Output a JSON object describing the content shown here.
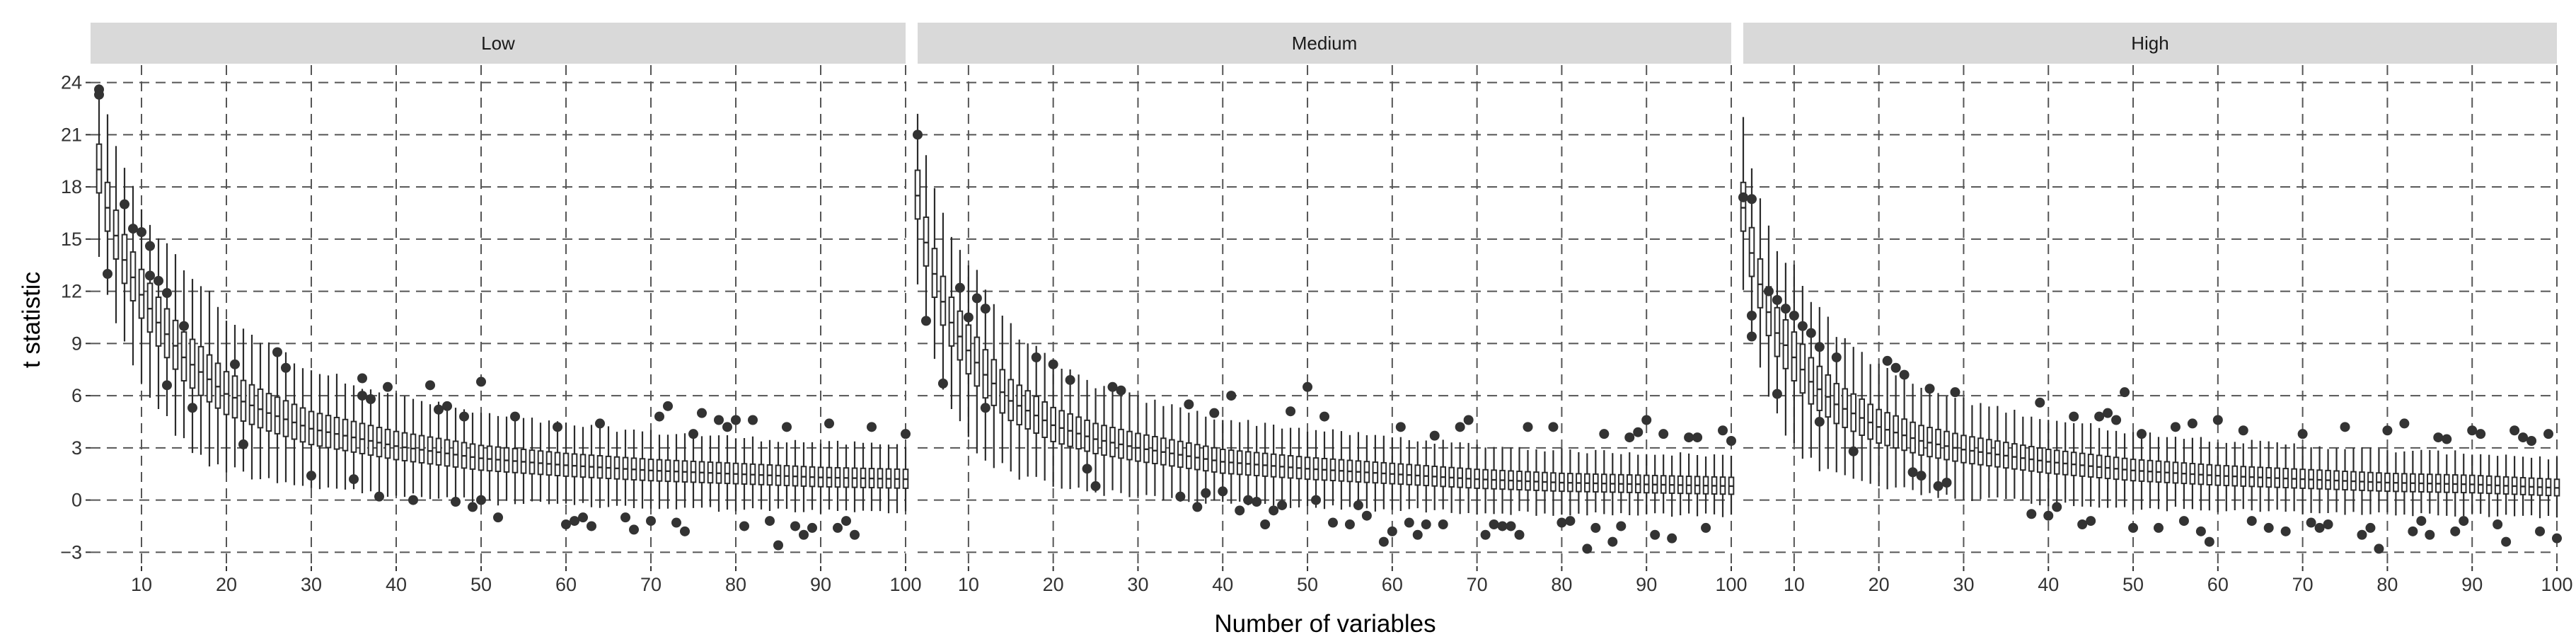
{
  "chart_data": {
    "type": "box",
    "xlabel": "Number of variables",
    "ylabel": "t statistic",
    "xlim": [
      4,
      100
    ],
    "ylim": [
      -3.8,
      25
    ],
    "x_ticks": [
      10,
      20,
      30,
      40,
      50,
      60,
      70,
      80,
      90,
      100
    ],
    "y_ticks": [
      -3,
      0,
      3,
      6,
      9,
      12,
      15,
      18,
      21,
      24
    ],
    "grid": true,
    "grid_style": "dashed",
    "box_color": "#2b2b2b",
    "box_fill": "#ffffff",
    "strip_fill": "#d9d9d9",
    "panels": [
      {
        "name": "Low",
        "median": {
          "x": [
            5,
            6,
            7,
            8,
            10,
            12,
            15,
            20,
            25,
            30,
            40,
            50,
            60,
            70,
            80,
            90,
            100
          ],
          "y": [
            19.0,
            16.8,
            15.2,
            13.8,
            11.8,
            10.2,
            8.2,
            6.1,
            5.0,
            4.1,
            3.1,
            2.4,
            2.0,
            1.7,
            1.5,
            1.3,
            1.2
          ]
        },
        "outliers": [
          {
            "x": 5,
            "y": 23.6
          },
          {
            "x": 5,
            "y": 23.3
          },
          {
            "x": 6,
            "y": 13.0
          },
          {
            "x": 8,
            "y": 17.0
          },
          {
            "x": 9,
            "y": 15.6
          },
          {
            "x": 10,
            "y": 15.4
          },
          {
            "x": 11,
            "y": 14.6
          },
          {
            "x": 11,
            "y": 12.9
          },
          {
            "x": 12,
            "y": 12.6
          },
          {
            "x": 13,
            "y": 11.9
          },
          {
            "x": 13,
            "y": 6.6
          },
          {
            "x": 15,
            "y": 10.0
          },
          {
            "x": 16,
            "y": 5.3
          },
          {
            "x": 21,
            "y": 7.8
          },
          {
            "x": 22,
            "y": 3.2
          },
          {
            "x": 26,
            "y": 8.5
          },
          {
            "x": 27,
            "y": 7.6
          },
          {
            "x": 30,
            "y": 1.4
          },
          {
            "x": 35,
            "y": 1.2
          },
          {
            "x": 36,
            "y": 7.0
          },
          {
            "x": 36,
            "y": 6.0
          },
          {
            "x": 37,
            "y": 5.8
          },
          {
            "x": 38,
            "y": 0.2
          },
          {
            "x": 39,
            "y": 6.5
          },
          {
            "x": 42,
            "y": 0.0
          },
          {
            "x": 44,
            "y": 6.6
          },
          {
            "x": 45,
            "y": 5.2
          },
          {
            "x": 46,
            "y": 5.4
          },
          {
            "x": 47,
            "y": -0.1
          },
          {
            "x": 48,
            "y": 4.8
          },
          {
            "x": 49,
            "y": -0.4
          },
          {
            "x": 50,
            "y": 6.8
          },
          {
            "x": 50,
            "y": 0.0
          },
          {
            "x": 52,
            "y": -1.0
          },
          {
            "x": 54,
            "y": 4.8
          },
          {
            "x": 59,
            "y": 4.2
          },
          {
            "x": 60,
            "y": -1.4
          },
          {
            "x": 61,
            "y": -1.2
          },
          {
            "x": 62,
            "y": -1.0
          },
          {
            "x": 63,
            "y": -1.5
          },
          {
            "x": 64,
            "y": 4.4
          },
          {
            "x": 67,
            "y": -1.0
          },
          {
            "x": 68,
            "y": -1.7
          },
          {
            "x": 70,
            "y": -1.2
          },
          {
            "x": 71,
            "y": 4.8
          },
          {
            "x": 72,
            "y": 5.4
          },
          {
            "x": 73,
            "y": -1.3
          },
          {
            "x": 74,
            "y": -1.8
          },
          {
            "x": 75,
            "y": 3.8
          },
          {
            "x": 76,
            "y": 5.0
          },
          {
            "x": 78,
            "y": 4.6
          },
          {
            "x": 79,
            "y": 4.2
          },
          {
            "x": 80,
            "y": 4.6
          },
          {
            "x": 81,
            "y": -1.5
          },
          {
            "x": 82,
            "y": 4.6
          },
          {
            "x": 84,
            "y": -1.2
          },
          {
            "x": 85,
            "y": -2.6
          },
          {
            "x": 86,
            "y": 4.2
          },
          {
            "x": 87,
            "y": -1.5
          },
          {
            "x": 88,
            "y": -2.0
          },
          {
            "x": 89,
            "y": -1.6
          },
          {
            "x": 91,
            "y": 4.4
          },
          {
            "x": 92,
            "y": -1.6
          },
          {
            "x": 93,
            "y": -1.2
          },
          {
            "x": 94,
            "y": -2.0
          },
          {
            "x": 96,
            "y": 4.2
          },
          {
            "x": 100,
            "y": 3.8
          }
        ]
      },
      {
        "name": "Medium",
        "median": {
          "x": [
            4,
            5,
            6,
            7,
            8,
            10,
            12,
            15,
            20,
            25,
            30,
            40,
            50,
            60,
            70,
            80,
            90,
            100
          ],
          "y": [
            17.5,
            14.8,
            13.0,
            11.4,
            10.2,
            8.6,
            7.2,
            5.7,
            4.3,
            3.5,
            3.0,
            2.2,
            1.8,
            1.5,
            1.2,
            1.0,
            0.9,
            0.8
          ]
        },
        "outliers": [
          {
            "x": 4,
            "y": 21.0
          },
          {
            "x": 5,
            "y": 10.3
          },
          {
            "x": 7,
            "y": 6.7
          },
          {
            "x": 9,
            "y": 12.2
          },
          {
            "x": 10,
            "y": 10.5
          },
          {
            "x": 11,
            "y": 11.6
          },
          {
            "x": 12,
            "y": 11.0
          },
          {
            "x": 12,
            "y": 5.3
          },
          {
            "x": 18,
            "y": 8.2
          },
          {
            "x": 20,
            "y": 7.8
          },
          {
            "x": 22,
            "y": 6.9
          },
          {
            "x": 24,
            "y": 1.8
          },
          {
            "x": 25,
            "y": 0.8
          },
          {
            "x": 27,
            "y": 6.5
          },
          {
            "x": 28,
            "y": 6.3
          },
          {
            "x": 35,
            "y": 0.2
          },
          {
            "x": 36,
            "y": 5.5
          },
          {
            "x": 37,
            "y": -0.4
          },
          {
            "x": 38,
            "y": 0.4
          },
          {
            "x": 39,
            "y": 5.0
          },
          {
            "x": 40,
            "y": 0.5
          },
          {
            "x": 41,
            "y": 6.0
          },
          {
            "x": 42,
            "y": -0.6
          },
          {
            "x": 43,
            "y": 0.0
          },
          {
            "x": 44,
            "y": -0.1
          },
          {
            "x": 45,
            "y": -1.4
          },
          {
            "x": 46,
            "y": -0.6
          },
          {
            "x": 47,
            "y": -0.3
          },
          {
            "x": 48,
            "y": 5.1
          },
          {
            "x": 50,
            "y": 6.5
          },
          {
            "x": 51,
            "y": 0.0
          },
          {
            "x": 52,
            "y": 4.8
          },
          {
            "x": 53,
            "y": -1.3
          },
          {
            "x": 55,
            "y": -1.4
          },
          {
            "x": 56,
            "y": -0.3
          },
          {
            "x": 57,
            "y": -0.9
          },
          {
            "x": 59,
            "y": -2.4
          },
          {
            "x": 60,
            "y": -1.8
          },
          {
            "x": 61,
            "y": 4.2
          },
          {
            "x": 62,
            "y": -1.3
          },
          {
            "x": 63,
            "y": -2.0
          },
          {
            "x": 64,
            "y": -1.4
          },
          {
            "x": 65,
            "y": 3.7
          },
          {
            "x": 66,
            "y": -1.4
          },
          {
            "x": 68,
            "y": 4.2
          },
          {
            "x": 69,
            "y": 4.6
          },
          {
            "x": 71,
            "y": -2.0
          },
          {
            "x": 72,
            "y": -1.4
          },
          {
            "x": 73,
            "y": -1.5
          },
          {
            "x": 74,
            "y": -1.5
          },
          {
            "x": 75,
            "y": -2.0
          },
          {
            "x": 76,
            "y": 4.2
          },
          {
            "x": 79,
            "y": 4.2
          },
          {
            "x": 80,
            "y": -1.3
          },
          {
            "x": 81,
            "y": -1.2
          },
          {
            "x": 83,
            "y": -2.8
          },
          {
            "x": 84,
            "y": -1.6
          },
          {
            "x": 85,
            "y": 3.8
          },
          {
            "x": 86,
            "y": -2.4
          },
          {
            "x": 87,
            "y": -1.5
          },
          {
            "x": 88,
            "y": 3.6
          },
          {
            "x": 89,
            "y": 3.9
          },
          {
            "x": 90,
            "y": 4.6
          },
          {
            "x": 91,
            "y": -2.0
          },
          {
            "x": 92,
            "y": 3.8
          },
          {
            "x": 93,
            "y": -2.2
          },
          {
            "x": 95,
            "y": 3.6
          },
          {
            "x": 96,
            "y": 3.6
          },
          {
            "x": 97,
            "y": -1.6
          },
          {
            "x": 99,
            "y": 4.0
          },
          {
            "x": 100,
            "y": 3.4
          }
        ]
      },
      {
        "name": "High",
        "median": {
          "x": [
            4,
            5,
            6,
            7,
            8,
            10,
            12,
            15,
            20,
            25,
            30,
            40,
            50,
            60,
            70,
            80,
            90,
            100
          ],
          "y": [
            16.8,
            14.2,
            12.4,
            10.8,
            9.6,
            8.2,
            6.8,
            5.5,
            4.2,
            3.4,
            2.9,
            2.2,
            1.7,
            1.4,
            1.2,
            1.0,
            0.9,
            0.7
          ]
        },
        "outliers": [
          {
            "x": 4,
            "y": 17.4
          },
          {
            "x": 5,
            "y": 17.3
          },
          {
            "x": 5,
            "y": 10.6
          },
          {
            "x": 5,
            "y": 9.4
          },
          {
            "x": 7,
            "y": 12.0
          },
          {
            "x": 8,
            "y": 11.5
          },
          {
            "x": 8,
            "y": 6.1
          },
          {
            "x": 9,
            "y": 11.0
          },
          {
            "x": 10,
            "y": 10.6
          },
          {
            "x": 11,
            "y": 10.0
          },
          {
            "x": 12,
            "y": 9.6
          },
          {
            "x": 13,
            "y": 8.8
          },
          {
            "x": 13,
            "y": 4.5
          },
          {
            "x": 15,
            "y": 8.2
          },
          {
            "x": 17,
            "y": 2.8
          },
          {
            "x": 21,
            "y": 8.0
          },
          {
            "x": 22,
            "y": 7.6
          },
          {
            "x": 23,
            "y": 7.2
          },
          {
            "x": 24,
            "y": 1.6
          },
          {
            "x": 25,
            "y": 1.4
          },
          {
            "x": 26,
            "y": 6.4
          },
          {
            "x": 27,
            "y": 0.8
          },
          {
            "x": 28,
            "y": 1.0
          },
          {
            "x": 29,
            "y": 6.2
          },
          {
            "x": 38,
            "y": -0.8
          },
          {
            "x": 39,
            "y": 5.6
          },
          {
            "x": 40,
            "y": -0.9
          },
          {
            "x": 41,
            "y": -0.4
          },
          {
            "x": 43,
            "y": 4.8
          },
          {
            "x": 44,
            "y": -1.4
          },
          {
            "x": 45,
            "y": -1.2
          },
          {
            "x": 46,
            "y": 4.8
          },
          {
            "x": 47,
            "y": 5.0
          },
          {
            "x": 48,
            "y": 4.6
          },
          {
            "x": 49,
            "y": 6.2
          },
          {
            "x": 50,
            "y": -1.6
          },
          {
            "x": 51,
            "y": 3.8
          },
          {
            "x": 53,
            "y": -1.6
          },
          {
            "x": 55,
            "y": 4.2
          },
          {
            "x": 56,
            "y": -1.2
          },
          {
            "x": 57,
            "y": 4.4
          },
          {
            "x": 58,
            "y": -1.8
          },
          {
            "x": 59,
            "y": -2.4
          },
          {
            "x": 60,
            "y": 4.6
          },
          {
            "x": 63,
            "y": 4.0
          },
          {
            "x": 64,
            "y": -1.2
          },
          {
            "x": 66,
            "y": -1.6
          },
          {
            "x": 68,
            "y": -1.8
          },
          {
            "x": 70,
            "y": 3.8
          },
          {
            "x": 71,
            "y": -1.3
          },
          {
            "x": 72,
            "y": -1.6
          },
          {
            "x": 73,
            "y": -1.4
          },
          {
            "x": 75,
            "y": 4.2
          },
          {
            "x": 77,
            "y": -2.0
          },
          {
            "x": 78,
            "y": -1.6
          },
          {
            "x": 79,
            "y": -2.8
          },
          {
            "x": 80,
            "y": 4.0
          },
          {
            "x": 82,
            "y": 4.4
          },
          {
            "x": 83,
            "y": -1.8
          },
          {
            "x": 84,
            "y": -1.2
          },
          {
            "x": 85,
            "y": -2.0
          },
          {
            "x": 86,
            "y": 3.6
          },
          {
            "x": 87,
            "y": 3.5
          },
          {
            "x": 88,
            "y": -1.8
          },
          {
            "x": 89,
            "y": -1.2
          },
          {
            "x": 90,
            "y": 4.0
          },
          {
            "x": 91,
            "y": 3.8
          },
          {
            "x": 93,
            "y": -1.4
          },
          {
            "x": 94,
            "y": -2.4
          },
          {
            "x": 95,
            "y": 4.0
          },
          {
            "x": 96,
            "y": 3.6
          },
          {
            "x": 97,
            "y": 3.4
          },
          {
            "x": 98,
            "y": -1.8
          },
          {
            "x": 99,
            "y": 3.8
          },
          {
            "x": 100,
            "y": -2.2
          }
        ]
      }
    ]
  }
}
